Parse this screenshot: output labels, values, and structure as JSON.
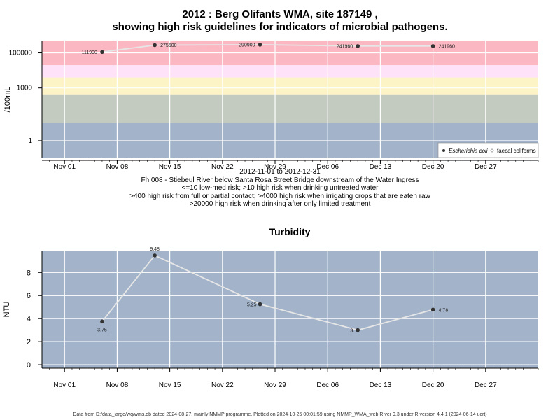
{
  "chart1": {
    "title_line1": "2012 : Berg Olifants WMA, site 187149 ,",
    "title_line2": "showing high risk guidelines for indicators of microbial pathogens.",
    "ylabel": "/100mL",
    "date_range": "2012-11-01 to 2012-12-31",
    "site_description": "Fh 008 - Stiebeul River below Santa Rosa Street Bridge downstream of the Water Ingress",
    "guidelines": [
      "<=10 low-med risk; >10 high risk when drinking untreated water",
      ">400 high risk from full or partial contact; >4000 high risk when irrigating crops that are eaten raw",
      ">20000 high risk when drinking after only limited treatment"
    ],
    "legend": [
      "Escherichia coli",
      "faecal coliforms"
    ]
  },
  "chart2": {
    "title": "Turbidity",
    "ylabel": "NTU"
  },
  "x_ticks": [
    "Nov 01",
    "Nov 08",
    "Nov 15",
    "Nov 22",
    "Nov 29",
    "Dec 06",
    "Dec 13",
    "Dec 20",
    "Dec 27"
  ],
  "footer": "Data from D:/data_large/wq/wms.db dated 2024-08-27, mainly NMMP programme. Plotted on 2024-10-25 00:01:59 using NMMP_WMA_web.R ver 9.3 under R version 4.4.1 (2024-06-14 ucrt)",
  "chart_data": [
    {
      "type": "line",
      "title": "2012 : Berg Olifants WMA, site 187149 , showing high risk guidelines for indicators of microbial pathogens.",
      "ylabel": "/100mL",
      "y_scale": "log10",
      "y_tick_labels": [
        "1",
        "1000",
        "100000"
      ],
      "x_range": [
        "2012-10-29",
        "2013-01-03"
      ],
      "bands": [
        {
          "from": 0.1,
          "to": 10,
          "color": "#a2b3ca"
        },
        {
          "from": 10,
          "to": 400,
          "color": "#c3cbc0"
        },
        {
          "from": 400,
          "to": 4000,
          "color": "#fcf4c7"
        },
        {
          "from": 4000,
          "to": 20000,
          "color": "#fde2f8"
        },
        {
          "from": 20000,
          "to": 1000000,
          "color": "#fbb8c2"
        }
      ],
      "series": [
        {
          "name": "Escherichia coli",
          "x": [
            "2012-11-06",
            "2012-11-13",
            "2012-11-27",
            "2012-12-10",
            "2012-12-20"
          ],
          "y": [
            111990,
            275500,
            290900,
            241960,
            241960
          ],
          "labels": [
            "111990",
            "275500",
            "290900",
            "241960",
            "241960"
          ]
        }
      ],
      "legend_position": "bottom-right",
      "grid": true
    },
    {
      "type": "line",
      "title": "Turbidity",
      "ylabel": "NTU",
      "ylim": [
        -0.3,
        9.9
      ],
      "y_ticks": [
        0,
        2,
        4,
        6,
        8
      ],
      "x_range": [
        "2012-10-29",
        "2013-01-03"
      ],
      "series": [
        {
          "x": [
            "2012-11-06",
            "2012-11-13",
            "2012-11-27",
            "2012-12-10",
            "2012-12-20"
          ],
          "y": [
            3.75,
            9.48,
            5.25,
            3.0,
            4.78
          ],
          "labels": [
            "3.75",
            "9.48",
            "5.25",
            "3.",
            "4.78"
          ]
        }
      ],
      "grid": true
    }
  ]
}
